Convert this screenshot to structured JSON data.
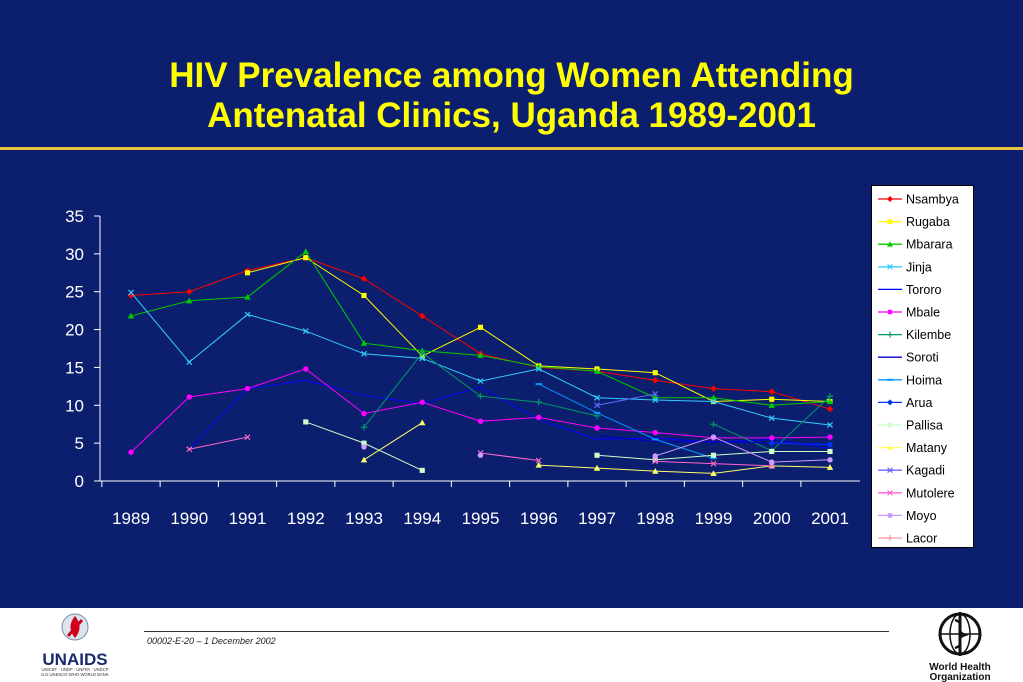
{
  "slide": {
    "title_line1": "HIV Prevalence among Women Attending",
    "title_line2": "Antenatal Clinics, Uganda 1989-2001",
    "background": "#0b1f6e",
    "title_color": "#ffff00"
  },
  "footer": {
    "code": "00002-E-20 – 1 December 2002",
    "unaids": {
      "name": "UNAIDS",
      "sponsors_line1": "UNICEF · UNDP · UNFPA · UNDCP",
      "sponsors_line2": "ILO·UNESCO·WHO·WORLD BANK"
    },
    "who": {
      "line1": "World Health",
      "line2": "Organization"
    }
  },
  "chart_data": {
    "type": "line",
    "title": "HIV Prevalence among Women Attending Antenatal Clinics, Uganda 1989-2001",
    "xlabel": "",
    "ylabel": "",
    "categories": [
      "1989",
      "1990",
      "1991",
      "1992",
      "1993",
      "1994",
      "1995",
      "1996",
      "1997",
      "1998",
      "1999",
      "2000",
      "2001"
    ],
    "ylim": [
      0,
      35
    ],
    "yticks": [
      "0",
      "5",
      "10",
      "15",
      "20",
      "25",
      "30",
      "35"
    ],
    "grid": false,
    "legend_position": "right",
    "series": [
      {
        "name": "Nsambya",
        "color": "#ff0000",
        "marker": "diamond",
        "values": [
          24.5,
          25,
          27.8,
          29.5,
          26.7,
          21.8,
          16.8,
          15,
          14.5,
          13.3,
          12.2,
          11.8,
          9.5
        ]
      },
      {
        "name": "Rugaba",
        "color": "#ffff00",
        "marker": "square",
        "values": [
          null,
          null,
          27.5,
          29.5,
          24.5,
          16.5,
          20.3,
          15.2,
          14.8,
          14.3,
          10.5,
          10.8,
          10.5
        ]
      },
      {
        "name": "Mbarara",
        "color": "#00cc00",
        "marker": "triangle",
        "values": [
          21.8,
          23.8,
          24.3,
          30.3,
          18.2,
          17.2,
          16.6,
          15.1,
          14.5,
          11,
          11,
          10,
          10.5
        ]
      },
      {
        "name": "Jinja",
        "color": "#33ccff",
        "marker": "x",
        "values": [
          24.9,
          15.7,
          22,
          19.8,
          16.8,
          16.2,
          13.2,
          14.8,
          11,
          10.7,
          10.5,
          8.3,
          7.4
        ]
      },
      {
        "name": "Tororo",
        "color": "#0000ff",
        "marker": "none",
        "values": [
          null,
          4.2,
          12.2,
          13.3,
          11.3,
          10.2,
          12.4,
          8.1,
          5.5,
          5.7,
          5.1,
          5.5,
          4.3
        ]
      },
      {
        "name": "Mbale",
        "color": "#ff00ff",
        "marker": "circle",
        "values": [
          3.8,
          11.1,
          12.2,
          14.8,
          8.9,
          10.4,
          7.9,
          8.4,
          7,
          6.4,
          5.7,
          5.7,
          5.8
        ]
      },
      {
        "name": "Kilembe",
        "color": "#009966",
        "marker": "plus",
        "values": [
          null,
          null,
          null,
          null,
          7.1,
          16.9,
          11.2,
          10.4,
          8.6,
          null,
          7.5,
          4,
          11.2
        ]
      },
      {
        "name": "Soroti",
        "color": "#0000cc",
        "marker": "none",
        "values": [
          null,
          null,
          null,
          null,
          null,
          null,
          null,
          null,
          6,
          5.2,
          5.2,
          5,
          4.9
        ]
      },
      {
        "name": "Hoima",
        "color": "#0099ff",
        "marker": "dash",
        "values": [
          null,
          null,
          null,
          null,
          null,
          null,
          null,
          12.8,
          9,
          5.5,
          3,
          null,
          null
        ]
      },
      {
        "name": "Arua",
        "color": "#0033ff",
        "marker": "diamond",
        "values": [
          null,
          null,
          null,
          null,
          null,
          null,
          null,
          null,
          null,
          null,
          null,
          5,
          4.8
        ]
      },
      {
        "name": "Pallisa",
        "color": "#ccffcc",
        "marker": "square",
        "values": [
          null,
          null,
          null,
          7.8,
          5,
          1.4,
          null,
          null,
          3.4,
          2.8,
          3.4,
          3.9,
          3.9
        ]
      },
      {
        "name": "Matany",
        "color": "#ffff66",
        "marker": "triangle",
        "values": [
          null,
          null,
          null,
          null,
          2.8,
          7.7,
          null,
          2.1,
          1.7,
          1.3,
          1,
          2,
          1.8
        ]
      },
      {
        "name": "Kagadi",
        "color": "#6666ff",
        "marker": "x",
        "values": [
          null,
          null,
          null,
          null,
          null,
          null,
          null,
          null,
          10,
          11.5,
          null,
          null,
          null
        ]
      },
      {
        "name": "Mutolere",
        "color": "#ff66cc",
        "marker": "x",
        "values": [
          null,
          4.2,
          5.8,
          null,
          null,
          null,
          3.7,
          2.7,
          null,
          2.6,
          2.3,
          2,
          null
        ]
      },
      {
        "name": "Moyo",
        "color": "#cc99ff",
        "marker": "circle",
        "values": [
          null,
          null,
          null,
          null,
          4.5,
          null,
          3.4,
          null,
          null,
          3.3,
          5.8,
          2.5,
          2.8
        ]
      },
      {
        "name": "Lacor",
        "color": "#ff9999",
        "marker": "plus",
        "values": [
          null,
          null,
          null,
          null,
          null,
          null,
          null,
          null,
          null,
          null,
          null,
          null,
          null
        ]
      }
    ]
  }
}
